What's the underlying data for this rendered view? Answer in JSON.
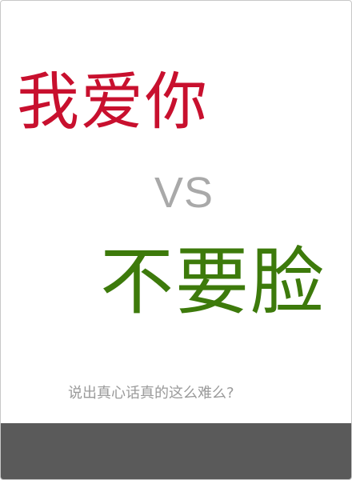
{
  "cover": {
    "title_top": "我爱你",
    "versus": "VS",
    "title_bottom": "不要脸",
    "tagline": "说出真心话真的这么难么?"
  },
  "colors": {
    "title_top": "#c8102e",
    "versus": "#a9a9a9",
    "title_bottom": "#3d7a0b",
    "tagline": "#9a9a9a",
    "bottom_band": "#5a5a5a"
  }
}
